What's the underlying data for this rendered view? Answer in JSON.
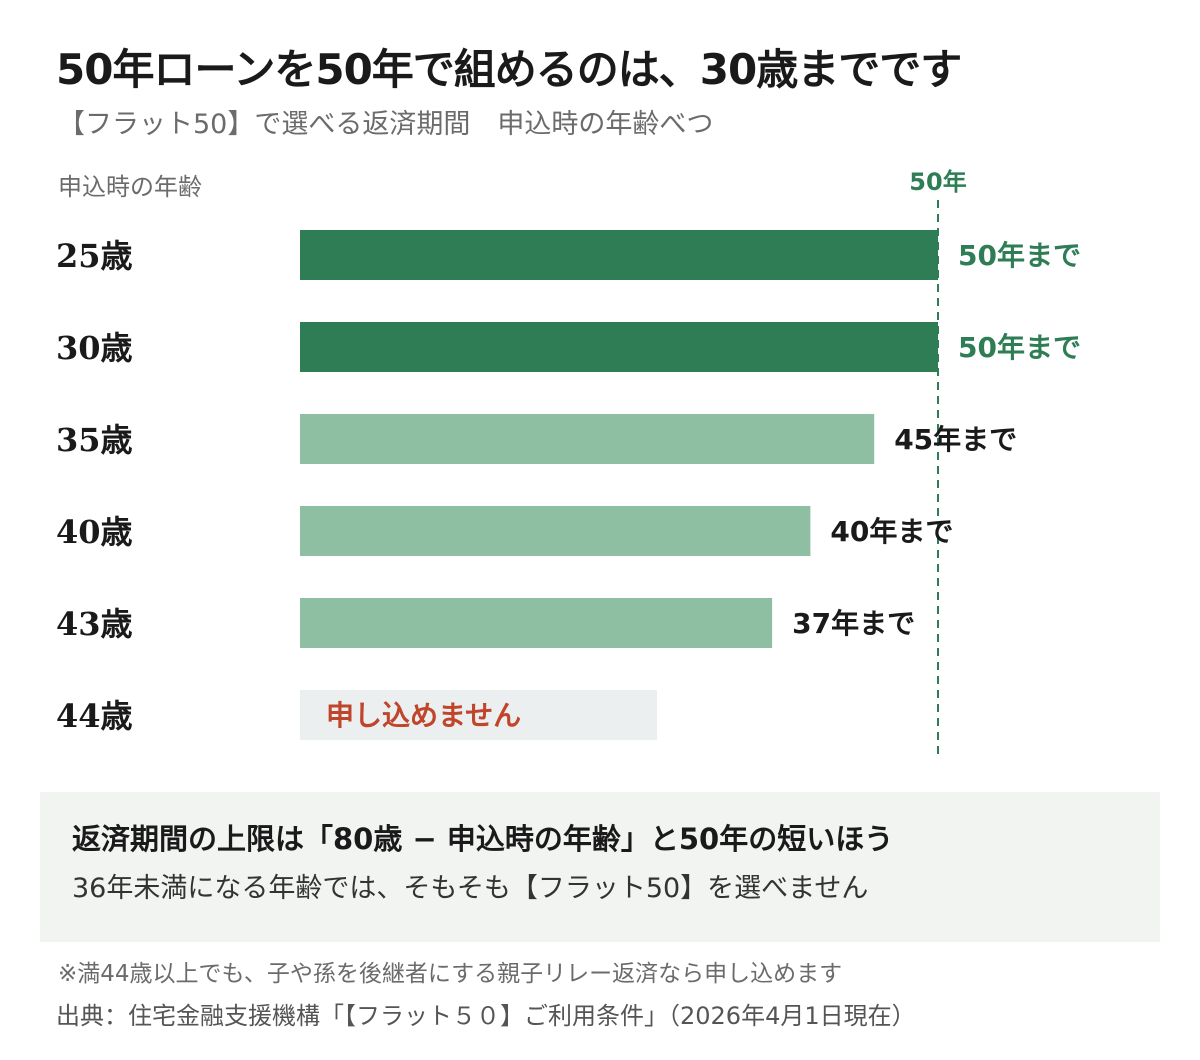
{
  "header": {
    "title": "50年ローンを50年で組めるのは、30歳までです",
    "subtitle": "【フラット50】で選べる返済期間　申込時の年齢べつ"
  },
  "chart_data": {
    "type": "bar",
    "orientation": "horizontal",
    "ylabel": "申込時の年齢",
    "categories": [
      "25歳",
      "30歳",
      "35歳",
      "40歳",
      "43歳",
      "44歳"
    ],
    "values": [
      50,
      50,
      45,
      40,
      37,
      null
    ],
    "value_labels": [
      "50年まで",
      "50年まで",
      "45年まで",
      "40年まで",
      "37年まで",
      "申し込めません"
    ],
    "reference_line": {
      "value": 50,
      "label": "50年"
    },
    "xlim": [
      0,
      50
    ],
    "grid": false,
    "colors": {
      "max": "#2e7d55",
      "reduced": "#8fbfa3",
      "not_available": "#eceff0",
      "not_available_text": "#c0452a",
      "max_text": "#2e7d55",
      "reduced_text": "#1a1a1a"
    }
  },
  "note": {
    "main": "返済期間の上限は「80歳 − 申込時の年齢」と50年の短いほう",
    "sub": "36年未満になる年齢では、そもそも【フラット50】を選べません"
  },
  "footnote": "※満44歳以上でも、子や孫を後継者にする親子リレー返済なら申し込めます",
  "source": "出典：住宅金融支援機構「【フラット５０】ご利用条件」（2026年4月1日現在）"
}
